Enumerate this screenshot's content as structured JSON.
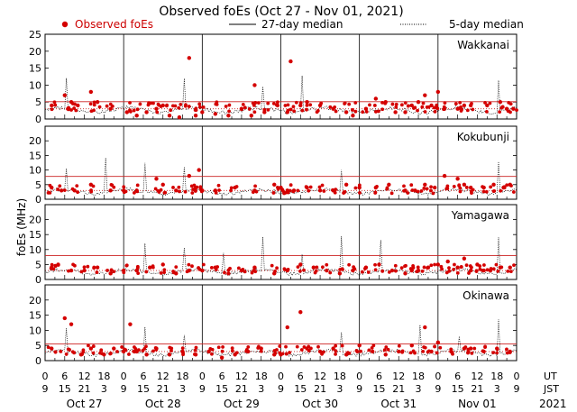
{
  "chart_data": {
    "type": "scatter",
    "title": "Observed foEs (Oct 27 - Nov 01, 2021)",
    "legend": {
      "observed": "Observed foEs",
      "median27": "27-day median",
      "median5": "5-day median"
    },
    "ylabel": "foEs (MHz)",
    "ylim": [
      0,
      25
    ],
    "yticks": [
      "0",
      "5",
      "10",
      "15",
      "20",
      "25"
    ],
    "xlim_hours": [
      0,
      144
    ],
    "xticks_ut": [
      "0",
      "6",
      "12",
      "18",
      "0",
      "6",
      "12",
      "18",
      "0",
      "6",
      "12",
      "18",
      "0",
      "6",
      "12",
      "18",
      "0",
      "6",
      "12",
      "18",
      "0",
      "6",
      "12",
      "18",
      "0"
    ],
    "xticks_jst": [
      "9",
      "15",
      "21",
      "3",
      "9",
      "15",
      "21",
      "3",
      "9",
      "15",
      "21",
      "3",
      "9",
      "15",
      "21",
      "3",
      "9",
      "15",
      "21",
      "3",
      "9",
      "15",
      "21",
      "3",
      "9"
    ],
    "ut_label": "UT",
    "jst_label": "JST",
    "dates": [
      "Oct 27",
      "Oct 28",
      "Oct 29",
      "Oct 30",
      "Oct 31",
      "Nov 01"
    ],
    "year": "2021",
    "colors": {
      "observed": "#d40000",
      "grid": "#000000"
    },
    "panels": [
      {
        "station": "Wakkanai",
        "median27": 5.1,
        "observed_end_hour": 118,
        "median5_level": 3.0,
        "observed": [
          [
            2,
            4
          ],
          [
            6,
            7
          ],
          [
            8,
            5
          ],
          [
            10,
            4
          ],
          [
            14,
            8
          ],
          [
            16,
            5
          ],
          [
            20,
            3
          ],
          [
            25,
            2
          ],
          [
            28,
            1
          ],
          [
            31,
            2
          ],
          [
            34,
            3
          ],
          [
            36,
            4
          ],
          [
            38,
            1
          ],
          [
            41,
            0.5
          ],
          [
            44,
            18
          ],
          [
            46,
            1
          ],
          [
            48,
            2
          ],
          [
            52,
            1.5
          ],
          [
            56,
            1
          ],
          [
            60,
            3
          ],
          [
            63,
            1
          ],
          [
            64,
            10
          ],
          [
            67,
            2
          ],
          [
            71,
            4
          ],
          [
            74,
            2
          ],
          [
            75,
            17
          ],
          [
            78,
            4
          ],
          [
            80,
            5
          ],
          [
            84,
            4
          ],
          [
            88,
            3
          ],
          [
            92,
            2
          ],
          [
            94,
            1
          ],
          [
            98,
            3
          ],
          [
            101,
            6
          ],
          [
            104,
            5
          ],
          [
            107,
            2
          ],
          [
            110,
            2
          ],
          [
            112,
            4
          ],
          [
            114,
            5
          ],
          [
            116,
            7
          ],
          [
            118,
            4
          ],
          [
            120,
            8
          ],
          [
            122,
            3
          ],
          [
            126,
            3
          ],
          [
            128,
            4
          ],
          [
            130,
            4
          ],
          [
            135,
            4
          ],
          [
            139,
            5
          ],
          [
            141,
            3
          ],
          [
            143,
            3
          ]
        ]
      },
      {
        "station": "Kokubunji",
        "median27": 7.8,
        "median5_level": 3.0,
        "observed": [
          [
            2,
            4
          ],
          [
            5,
            3
          ],
          [
            9,
            3
          ],
          [
            14,
            5
          ],
          [
            20,
            3
          ],
          [
            24,
            3
          ],
          [
            28,
            3
          ],
          [
            34,
            7
          ],
          [
            36,
            5
          ],
          [
            40,
            3
          ],
          [
            44,
            8
          ],
          [
            46,
            4
          ],
          [
            47,
            10
          ],
          [
            48,
            3
          ],
          [
            52,
            3
          ],
          [
            58,
            4
          ],
          [
            64,
            3
          ],
          [
            70,
            5
          ],
          [
            72,
            4
          ],
          [
            74,
            3
          ],
          [
            76,
            3
          ],
          [
            80,
            4
          ],
          [
            84,
            3
          ],
          [
            88,
            3
          ],
          [
            92,
            5
          ],
          [
            96,
            4
          ],
          [
            101,
            4
          ],
          [
            105,
            5
          ],
          [
            110,
            3
          ],
          [
            113,
            3
          ],
          [
            116,
            5
          ],
          [
            119,
            4
          ],
          [
            122,
            8
          ],
          [
            126,
            7
          ],
          [
            128,
            5
          ],
          [
            130,
            4
          ],
          [
            134,
            4
          ],
          [
            137,
            5
          ],
          [
            140,
            4
          ],
          [
            142,
            5
          ]
        ]
      },
      {
        "station": "Yamagawa",
        "median27": 8.0,
        "median5_level": 3.0,
        "observed": [
          [
            2,
            4
          ],
          [
            4,
            5
          ],
          [
            8,
            3
          ],
          [
            12,
            3
          ],
          [
            16,
            4
          ],
          [
            20,
            2
          ],
          [
            24,
            3
          ],
          [
            28,
            3
          ],
          [
            32,
            4
          ],
          [
            36,
            5
          ],
          [
            40,
            2
          ],
          [
            44,
            3
          ],
          [
            48,
            3
          ],
          [
            52,
            4
          ],
          [
            56,
            2
          ],
          [
            60,
            3
          ],
          [
            64,
            4
          ],
          [
            70,
            2
          ],
          [
            74,
            3
          ],
          [
            78,
            5
          ],
          [
            82,
            4
          ],
          [
            86,
            3
          ],
          [
            90,
            2
          ],
          [
            94,
            3
          ],
          [
            98,
            4
          ],
          [
            102,
            5
          ],
          [
            106,
            3
          ],
          [
            110,
            2
          ],
          [
            112,
            3
          ],
          [
            114,
            3
          ],
          [
            117,
            4
          ],
          [
            120,
            5
          ],
          [
            123,
            6
          ],
          [
            126,
            4
          ],
          [
            128,
            7
          ],
          [
            130,
            3
          ],
          [
            132,
            5
          ],
          [
            134,
            3
          ],
          [
            136,
            3
          ],
          [
            139,
            4
          ],
          [
            142,
            4
          ]
        ]
      },
      {
        "station": "Okinawa",
        "median27": 5.5,
        "median5_level": 3.0,
        "observed": [
          [
            2,
            4
          ],
          [
            6,
            14
          ],
          [
            8,
            12
          ],
          [
            11,
            2
          ],
          [
            14,
            4
          ],
          [
            18,
            2
          ],
          [
            21,
            4
          ],
          [
            24,
            3
          ],
          [
            26,
            12
          ],
          [
            28,
            3
          ],
          [
            31,
            2
          ],
          [
            34,
            4
          ],
          [
            38,
            2
          ],
          [
            42,
            3
          ],
          [
            46,
            2
          ],
          [
            50,
            3
          ],
          [
            54,
            1
          ],
          [
            58,
            2
          ],
          [
            62,
            3
          ],
          [
            66,
            4
          ],
          [
            70,
            2
          ],
          [
            72,
            2
          ],
          [
            74,
            11
          ],
          [
            78,
            16
          ],
          [
            80,
            4
          ],
          [
            84,
            3
          ],
          [
            88,
            4
          ],
          [
            92,
            2
          ],
          [
            96,
            5
          ],
          [
            100,
            3
          ],
          [
            104,
            2
          ],
          [
            108,
            3
          ],
          [
            112,
            5
          ],
          [
            116,
            11
          ],
          [
            118,
            3
          ],
          [
            120,
            6
          ],
          [
            124,
            3
          ],
          [
            128,
            4
          ],
          [
            130,
            4
          ],
          [
            134,
            3
          ],
          [
            138,
            4
          ],
          [
            142,
            3
          ]
        ]
      }
    ]
  }
}
